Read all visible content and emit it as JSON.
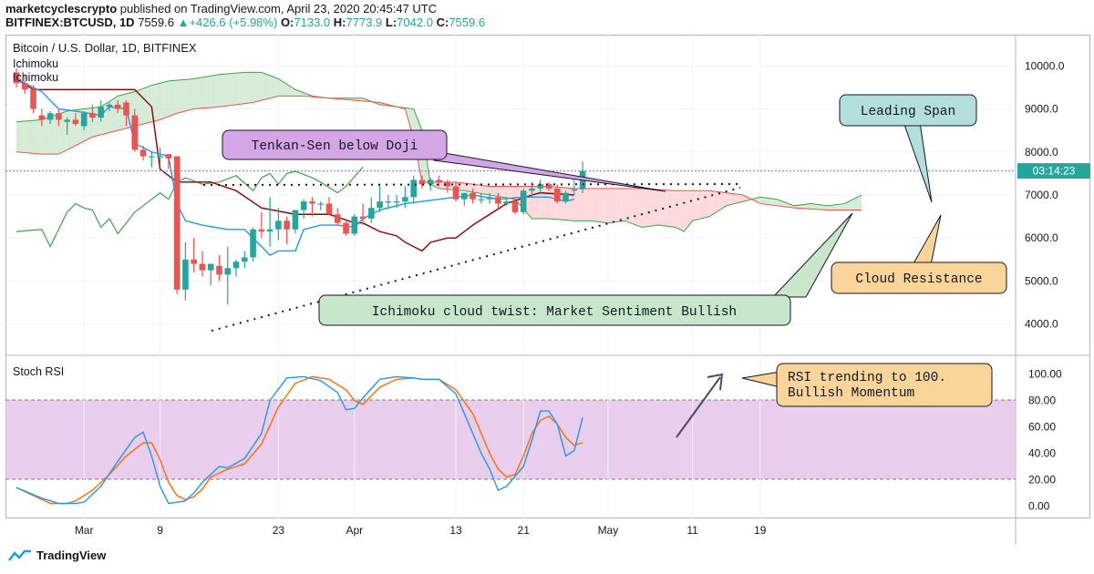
{
  "header": {
    "line1_user": "marketcyclescrypto",
    "line1_rest": "published on TradingView.com, April 23, 2020 20:45:47 UTC",
    "symbol": "BITFINEX:BTCUSD, 1D",
    "last": "7559.6",
    "arrow": "▲",
    "change": "+426.6 (+5.98%)",
    "o_label": "O:",
    "o": "7133.0",
    "h_label": "H:",
    "h": "7773.9",
    "l_label": "L:",
    "l": "7042.0",
    "c_label": "C:",
    "c": "7559.6"
  },
  "pane": {
    "title": "Bitcoin / U.S. Dollar, 1D, BITFINEX",
    "indicator1": "Ichimoku",
    "indicator2": "Ichimoku",
    "rsi_title": "Stoch RSI",
    "countdown": "03:14:23"
  },
  "annotations": {
    "tenkan": "Tenkan-Sen below Doji",
    "leading": "Leading Span",
    "cloud_resistance": "Cloud Resistance",
    "twist": "Ichimoku cloud twist: Market Sentiment Bullish",
    "rsi_note_1": "RSI trending to 100.",
    "rsi_note_2": "Bullish Momentum"
  },
  "footer": {
    "brand": "TradingView"
  },
  "colors": {
    "up": "#26a69a",
    "down": "#ef5350",
    "tenkan": "#2196f3",
    "kijun": "#8b0000",
    "chikou": "#43a047",
    "span_a": "#43a047",
    "span_b": "#ef5350",
    "rsi_k": "#2196f3",
    "rsi_d": "#ff6d00",
    "rsi_band": "#e1bee7"
  },
  "chart_data": {
    "type": "candlestick",
    "price_axis": {
      "ylim": [
        3400,
        10600
      ],
      "ticks": [
        "10000.0",
        "9000.0",
        "8000.0",
        "7000.0",
        "6000.0",
        "5000.0",
        "4000.0"
      ],
      "tick_values": [
        10000,
        9000,
        8000,
        7000,
        6000,
        5000,
        4000
      ]
    },
    "rsi_axis": {
      "ylim": [
        -10,
        110
      ],
      "ticks": [
        "100.00",
        "80.00",
        "60.00",
        "40.00",
        "20.00",
        "0.00"
      ],
      "tick_values": [
        100,
        80,
        60,
        40,
        20,
        0
      ]
    },
    "x_ticks": [
      {
        "label": "Mar",
        "i": 8
      },
      {
        "label": "9",
        "i": 17
      },
      {
        "label": "23",
        "i": 31
      },
      {
        "label": "Apr",
        "i": 40
      },
      {
        "label": "13",
        "i": 52
      },
      {
        "label": "21",
        "i": 60
      },
      {
        "label": "May",
        "i": 70
      },
      {
        "label": "11",
        "i": 80
      },
      {
        "label": "19",
        "i": 88
      }
    ],
    "x_range": [
      0,
      98
    ],
    "last_price": 7559.6,
    "candles": [
      [
        9850,
        9950,
        9500,
        9600
      ],
      [
        9600,
        9800,
        9350,
        9450
      ],
      [
        9450,
        9550,
        8900,
        9000
      ],
      [
        8850,
        9000,
        8600,
        8750
      ],
      [
        8750,
        8950,
        8650,
        8900
      ],
      [
        8900,
        9000,
        8600,
        8750
      ],
      [
        8700,
        8800,
        8400,
        8750
      ],
      [
        8750,
        8900,
        8600,
        8650
      ],
      [
        8600,
        8950,
        8500,
        8900
      ],
      [
        8900,
        9100,
        8700,
        8800
      ],
      [
        8800,
        9200,
        8700,
        9050
      ],
      [
        9050,
        9150,
        8950,
        9100
      ],
      [
        9100,
        9200,
        8900,
        9000
      ],
      [
        9150,
        9200,
        8600,
        8850
      ],
      [
        8850,
        9000,
        8000,
        8050
      ],
      [
        8050,
        8150,
        7800,
        7900
      ],
      [
        7900,
        8000,
        7650,
        7900
      ],
      [
        7900,
        8100,
        7700,
        7900
      ],
      [
        7950,
        7950,
        7600,
        7850
      ],
      [
        7900,
        7900,
        4700,
        4800
      ],
      [
        4800,
        5900,
        4550,
        5500
      ],
      [
        5500,
        6000,
        5200,
        5400
      ],
      [
        5400,
        5700,
        5100,
        5250
      ],
      [
        5250,
        5400,
        4900,
        5400
      ],
      [
        5350,
        5600,
        5000,
        5150
      ],
      [
        5150,
        5800,
        4450,
        5300
      ],
      [
        5300,
        5500,
        5100,
        5450
      ],
      [
        5450,
        5700,
        5300,
        5550
      ],
      [
        5550,
        6250,
        5450,
        6200
      ],
      [
        6200,
        6600,
        6000,
        6150
      ],
      [
        6150,
        6950,
        5800,
        6200
      ],
      [
        6200,
        6700,
        5950,
        6400
      ],
      [
        6400,
        6500,
        5850,
        6200
      ],
      [
        6200,
        6650,
        6100,
        6650
      ],
      [
        6650,
        6900,
        6450,
        6850
      ],
      [
        6850,
        6950,
        6500,
        6800
      ],
      [
        6800,
        6850,
        6650,
        6800
      ],
      [
        6800,
        6950,
        6550,
        6550
      ],
      [
        6550,
        6700,
        6300,
        6350
      ],
      [
        6350,
        6450,
        6050,
        6100
      ],
      [
        6100,
        6550,
        6050,
        6500
      ],
      [
        6500,
        6800,
        6300,
        6450
      ],
      [
        6450,
        6950,
        6350,
        6700
      ],
      [
        6700,
        7250,
        6600,
        6850
      ],
      [
        6850,
        7000,
        6700,
        6850
      ],
      [
        6850,
        7000,
        6700,
        6850
      ],
      [
        6850,
        7200,
        6700,
        6950
      ],
      [
        6950,
        7450,
        6800,
        7350
      ],
      [
        7350,
        7450,
        7150,
        7250
      ],
      [
        7250,
        7400,
        7100,
        7350
      ],
      [
        7350,
        7450,
        7200,
        7300
      ],
      [
        7300,
        7350,
        7050,
        7200
      ],
      [
        7200,
        7300,
        6850,
        6900
      ],
      [
        6900,
        7050,
        6750,
        7050
      ],
      [
        7050,
        7150,
        6800,
        6900
      ],
      [
        6900,
        7050,
        6800,
        6900
      ],
      [
        6900,
        7050,
        6800,
        6950
      ],
      [
        6950,
        7050,
        6700,
        6800
      ],
      [
        6800,
        6950,
        6750,
        6850
      ],
      [
        6850,
        6950,
        6550,
        6600
      ],
      [
        6600,
        7150,
        6550,
        7100
      ],
      [
        7100,
        7300,
        6950,
        7150
      ],
      [
        7150,
        7350,
        7050,
        7250
      ],
      [
        7250,
        7300,
        7100,
        7150
      ],
      [
        7150,
        7250,
        6800,
        6850
      ],
      [
        6850,
        7100,
        6800,
        7050
      ],
      [
        7100,
        7350,
        7000,
        7133
      ],
      [
        7133,
        7773.9,
        7042,
        7559.6
      ]
    ],
    "candle_x_start": 0,
    "tenkan": [
      [
        0,
        9700
      ],
      [
        3,
        9400
      ],
      [
        5,
        9000
      ],
      [
        7,
        8950
      ],
      [
        10,
        8850
      ],
      [
        11,
        9050
      ],
      [
        13,
        9000
      ],
      [
        14,
        8200
      ],
      [
        16,
        8000
      ],
      [
        18,
        7900
      ],
      [
        19,
        6800
      ],
      [
        20,
        6400
      ],
      [
        22,
        6300
      ],
      [
        25,
        6200
      ],
      [
        27,
        6200
      ],
      [
        29,
        5800
      ],
      [
        30,
        5600
      ],
      [
        31,
        5700
      ],
      [
        33,
        5700
      ],
      [
        34,
        6200
      ],
      [
        36,
        6300
      ],
      [
        38,
        6300
      ],
      [
        40,
        6250
      ],
      [
        41,
        6450
      ],
      [
        43,
        6650
      ],
      [
        46,
        6800
      ],
      [
        48,
        6850
      ],
      [
        50,
        6900
      ],
      [
        52,
        6950
      ],
      [
        54,
        7000
      ],
      [
        57,
        6900
      ],
      [
        60,
        6950
      ],
      [
        63,
        6950
      ],
      [
        65,
        6850
      ],
      [
        66,
        6900
      ]
    ],
    "kijun": [
      [
        0,
        9700
      ],
      [
        2,
        9450
      ],
      [
        14,
        9450
      ],
      [
        16,
        9050
      ],
      [
        17,
        7600
      ],
      [
        19,
        7300
      ],
      [
        23,
        7300
      ],
      [
        26,
        7100
      ],
      [
        29,
        6700
      ],
      [
        33,
        6550
      ],
      [
        37,
        6550
      ],
      [
        40,
        6350
      ],
      [
        41,
        6350
      ],
      [
        43,
        6150
      ],
      [
        45,
        6050
      ],
      [
        46,
        5900
      ],
      [
        48,
        5700
      ],
      [
        49,
        5900
      ],
      [
        51,
        6000
      ],
      [
        52,
        6000
      ],
      [
        54,
        6300
      ],
      [
        56,
        6550
      ],
      [
        58,
        6800
      ],
      [
        61,
        7000
      ],
      [
        62,
        7050
      ],
      [
        66,
        7000
      ]
    ],
    "chikou": [
      [
        0,
        6150
      ],
      [
        3,
        6200
      ],
      [
        4,
        5800
      ],
      [
        6,
        6600
      ],
      [
        7,
        6800
      ],
      [
        8,
        6700
      ],
      [
        9,
        6650
      ],
      [
        10,
        6250
      ],
      [
        11,
        6450
      ],
      [
        12,
        6100
      ],
      [
        14,
        6600
      ],
      [
        15,
        6750
      ],
      [
        17,
        7050
      ],
      [
        18,
        6900
      ],
      [
        19,
        7300
      ],
      [
        20,
        7400
      ],
      [
        22,
        7250
      ],
      [
        24,
        7300
      ],
      [
        26,
        7450
      ],
      [
        28,
        7100
      ],
      [
        29,
        7400
      ],
      [
        30,
        7500
      ],
      [
        31,
        7250
      ],
      [
        32,
        7500
      ],
      [
        33,
        7550
      ],
      [
        35,
        7400
      ],
      [
        36,
        7300
      ],
      [
        38,
        7050
      ],
      [
        39,
        7200
      ],
      [
        41,
        7650
      ]
    ],
    "span_a": [
      [
        0,
        8700
      ],
      [
        3,
        8750
      ],
      [
        6,
        8950
      ],
      [
        10,
        9050
      ],
      [
        12,
        9300
      ],
      [
        14,
        9400
      ],
      [
        16,
        9550
      ],
      [
        18,
        9650
      ],
      [
        21,
        9700
      ],
      [
        24,
        9800
      ],
      [
        27,
        9850
      ],
      [
        29,
        9850
      ],
      [
        31,
        9700
      ],
      [
        33,
        9450
      ],
      [
        35,
        9300
      ],
      [
        37,
        9250
      ],
      [
        41,
        9250
      ],
      [
        43,
        9100
      ],
      [
        47,
        9000
      ],
      [
        48,
        8500
      ],
      [
        49,
        7250
      ],
      [
        50,
        7150
      ],
      [
        53,
        7100
      ],
      [
        56,
        7000
      ],
      [
        59,
        6900
      ],
      [
        61,
        6450
      ],
      [
        63,
        6450
      ],
      [
        66,
        6400
      ],
      [
        68,
        6400
      ],
      [
        70,
        6350
      ],
      [
        72,
        6400
      ],
      [
        74,
        6250
      ],
      [
        76,
        6300
      ],
      [
        78,
        6250
      ],
      [
        79,
        6150
      ],
      [
        80,
        6400
      ],
      [
        82,
        6500
      ],
      [
        84,
        6750
      ],
      [
        86,
        6850
      ],
      [
        88,
        6950
      ],
      [
        90,
        6900
      ],
      [
        92,
        6750
      ],
      [
        94,
        6800
      ],
      [
        96,
        6750
      ],
      [
        98,
        6800
      ],
      [
        100,
        7000
      ]
    ],
    "span_b": [
      [
        0,
        8000
      ],
      [
        3,
        7950
      ],
      [
        5,
        7950
      ],
      [
        6,
        8050
      ],
      [
        9,
        8350
      ],
      [
        12,
        8500
      ],
      [
        15,
        8650
      ],
      [
        17,
        8750
      ],
      [
        19,
        8900
      ],
      [
        21,
        9000
      ],
      [
        24,
        9050
      ],
      [
        28,
        9150
      ],
      [
        31,
        9300
      ],
      [
        34,
        9300
      ],
      [
        37,
        9250
      ],
      [
        40,
        9200
      ],
      [
        43,
        9150
      ],
      [
        46,
        9000
      ],
      [
        47,
        8300
      ],
      [
        48,
        7300
      ],
      [
        52,
        7300
      ],
      [
        56,
        7200
      ],
      [
        60,
        7200
      ],
      [
        63,
        7200
      ],
      [
        66,
        7150
      ],
      [
        70,
        7150
      ],
      [
        74,
        7150
      ],
      [
        78,
        7100
      ],
      [
        82,
        7100
      ],
      [
        86,
        7000
      ],
      [
        88,
        6800
      ],
      [
        92,
        6700
      ],
      [
        96,
        6650
      ],
      [
        100,
        6650
      ]
    ],
    "rsi_k": [
      [
        0,
        14
      ],
      [
        3,
        6
      ],
      [
        5,
        2
      ],
      [
        7,
        2
      ],
      [
        8,
        3
      ],
      [
        10,
        15
      ],
      [
        12,
        34
      ],
      [
        14,
        52
      ],
      [
        15,
        56
      ],
      [
        16,
        38
      ],
      [
        17,
        15
      ],
      [
        18,
        2
      ],
      [
        19,
        3
      ],
      [
        20,
        4
      ],
      [
        21,
        10
      ],
      [
        22,
        18
      ],
      [
        24,
        30
      ],
      [
        25,
        29
      ],
      [
        27,
        36
      ],
      [
        29,
        55
      ],
      [
        30,
        80
      ],
      [
        32,
        97
      ],
      [
        34,
        98
      ],
      [
        36,
        95
      ],
      [
        38,
        86
      ],
      [
        39,
        73
      ],
      [
        40,
        74
      ],
      [
        41,
        82
      ],
      [
        43,
        96
      ],
      [
        45,
        98
      ],
      [
        47,
        97
      ],
      [
        48,
        96
      ],
      [
        49,
        96
      ],
      [
        50,
        96
      ],
      [
        52,
        85
      ],
      [
        54,
        55
      ],
      [
        55,
        40
      ],
      [
        56,
        28
      ],
      [
        57,
        12
      ],
      [
        58,
        15
      ],
      [
        60,
        30
      ],
      [
        61,
        50
      ],
      [
        62,
        72
      ],
      [
        63,
        72
      ],
      [
        64,
        62
      ],
      [
        65,
        38
      ],
      [
        66,
        42
      ],
      [
        67,
        67
      ]
    ],
    "rsi_d": [
      [
        0,
        14
      ],
      [
        2,
        8
      ],
      [
        4,
        2
      ],
      [
        6,
        2
      ],
      [
        7,
        4
      ],
      [
        9,
        12
      ],
      [
        11,
        24
      ],
      [
        13,
        38
      ],
      [
        15,
        48
      ],
      [
        16,
        48
      ],
      [
        17,
        35
      ],
      [
        18,
        18
      ],
      [
        19,
        8
      ],
      [
        20,
        5
      ],
      [
        21,
        7
      ],
      [
        22,
        13
      ],
      [
        23,
        22
      ],
      [
        25,
        28
      ],
      [
        27,
        32
      ],
      [
        29,
        47
      ],
      [
        31,
        75
      ],
      [
        33,
        93
      ],
      [
        35,
        98
      ],
      [
        37,
        96
      ],
      [
        39,
        88
      ],
      [
        40,
        80
      ],
      [
        41,
        77
      ],
      [
        43,
        90
      ],
      [
        45,
        96
      ],
      [
        47,
        97
      ],
      [
        48,
        96
      ],
      [
        49,
        96
      ],
      [
        50,
        96
      ],
      [
        52,
        88
      ],
      [
        54,
        70
      ],
      [
        55,
        55
      ],
      [
        56,
        40
      ],
      [
        57,
        28
      ],
      [
        58,
        22
      ],
      [
        59,
        24
      ],
      [
        60,
        38
      ],
      [
        61,
        55
      ],
      [
        62,
        65
      ],
      [
        63,
        68
      ],
      [
        64,
        62
      ],
      [
        65,
        52
      ],
      [
        66,
        46
      ],
      [
        67,
        48
      ]
    ]
  }
}
